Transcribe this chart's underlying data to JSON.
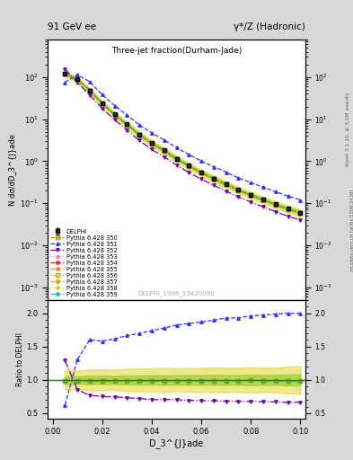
{
  "title_top": "91 GeV ee",
  "title_top_right": "γ*/Z (Hadronic)",
  "plot_title": "Three-jet fraction(Durham-Jade)",
  "xlabel": "D_3^{J}ade",
  "ylabel_main": "N dσ/dD_3^{J}ade",
  "ylabel_ratio": "Ratio to DELPHI",
  "right_label": "Rivet 3.1.10, ≥ 3.1M events",
  "right_label2": "mcplots.cern.ch [arXiv:1306.3436]",
  "watermark": "DELPHI_1996_S3430090",
  "delphi_x": [
    0.005,
    0.01,
    0.015,
    0.02,
    0.025,
    0.03,
    0.035,
    0.04,
    0.045,
    0.05,
    0.055,
    0.06,
    0.065,
    0.07,
    0.075,
    0.08,
    0.085,
    0.09,
    0.095,
    0.1
  ],
  "delphi_y": [
    120,
    88,
    48,
    24,
    13,
    7.5,
    4.3,
    2.7,
    1.8,
    1.15,
    0.78,
    0.54,
    0.39,
    0.285,
    0.207,
    0.158,
    0.122,
    0.094,
    0.074,
    0.06
  ],
  "delphi_yerr_lo": [
    7,
    5,
    3,
    1.5,
    0.8,
    0.5,
    0.3,
    0.19,
    0.13,
    0.08,
    0.056,
    0.039,
    0.029,
    0.021,
    0.015,
    0.012,
    0.009,
    0.007,
    0.006,
    0.005
  ],
  "delphi_yerr_hi": [
    7,
    5,
    3,
    1.5,
    0.8,
    0.5,
    0.3,
    0.19,
    0.13,
    0.08,
    0.056,
    0.039,
    0.029,
    0.021,
    0.015,
    0.012,
    0.009,
    0.007,
    0.006,
    0.005
  ],
  "p350_y": [
    119,
    87,
    47.5,
    23.5,
    12.8,
    7.4,
    4.25,
    2.65,
    1.77,
    1.14,
    0.77,
    0.534,
    0.386,
    0.282,
    0.205,
    0.157,
    0.121,
    0.093,
    0.073,
    0.059
  ],
  "p351_y": [
    75,
    115,
    77,
    38,
    21,
    12.5,
    7.3,
    4.7,
    3.2,
    2.1,
    1.44,
    1.01,
    0.74,
    0.55,
    0.4,
    0.31,
    0.241,
    0.187,
    0.148,
    0.12
  ],
  "p352_y": [
    155,
    75,
    37,
    18,
    9.7,
    5.5,
    3.1,
    1.9,
    1.27,
    0.81,
    0.54,
    0.373,
    0.268,
    0.194,
    0.14,
    0.107,
    0.082,
    0.063,
    0.049,
    0.04
  ],
  "p353_y": [
    119,
    87,
    47.5,
    23.5,
    12.8,
    7.4,
    4.25,
    2.65,
    1.77,
    1.14,
    0.77,
    0.534,
    0.386,
    0.282,
    0.205,
    0.157,
    0.121,
    0.093,
    0.073,
    0.059
  ],
  "p354_y": [
    119,
    87,
    47.5,
    23.5,
    12.8,
    7.4,
    4.25,
    2.65,
    1.77,
    1.14,
    0.77,
    0.534,
    0.386,
    0.282,
    0.205,
    0.157,
    0.121,
    0.093,
    0.073,
    0.059
  ],
  "p355_y": [
    119,
    87,
    47.5,
    23.5,
    12.8,
    7.4,
    4.25,
    2.65,
    1.77,
    1.14,
    0.77,
    0.534,
    0.386,
    0.282,
    0.205,
    0.157,
    0.121,
    0.093,
    0.073,
    0.059
  ],
  "p356_y": [
    119,
    87,
    47.5,
    23.5,
    12.8,
    7.4,
    4.25,
    2.65,
    1.77,
    1.14,
    0.77,
    0.534,
    0.386,
    0.282,
    0.205,
    0.157,
    0.121,
    0.093,
    0.073,
    0.059
  ],
  "p357_y": [
    119,
    87,
    47.5,
    23.5,
    12.8,
    7.4,
    4.25,
    2.65,
    1.77,
    1.14,
    0.77,
    0.534,
    0.386,
    0.282,
    0.205,
    0.157,
    0.121,
    0.093,
    0.073,
    0.059
  ],
  "p358_y": [
    119,
    87,
    47.5,
    23.5,
    12.8,
    7.4,
    4.25,
    2.65,
    1.77,
    1.14,
    0.77,
    0.534,
    0.386,
    0.282,
    0.205,
    0.157,
    0.121,
    0.093,
    0.073,
    0.059
  ],
  "p359_y": [
    119,
    87,
    47.5,
    23.5,
    12.8,
    7.4,
    4.25,
    2.65,
    1.77,
    1.14,
    0.77,
    0.534,
    0.386,
    0.282,
    0.205,
    0.157,
    0.121,
    0.093,
    0.073,
    0.059
  ],
  "c_delphi": "#000000",
  "c_p350": "#999900",
  "c_p351": "#3333ff",
  "c_p352": "#7700aa",
  "c_p353": "#ff66aa",
  "c_p354": "#dd2222",
  "c_p355": "#ff8800",
  "c_p356": "#aaaa00",
  "c_p357": "#ddaa00",
  "c_p358": "#cccc44",
  "c_p359": "#00ccbb",
  "ylim_main": [
    0.0005,
    800
  ],
  "ylim_ratio": [
    0.42,
    2.2
  ],
  "xlim": [
    -0.002,
    0.102
  ]
}
